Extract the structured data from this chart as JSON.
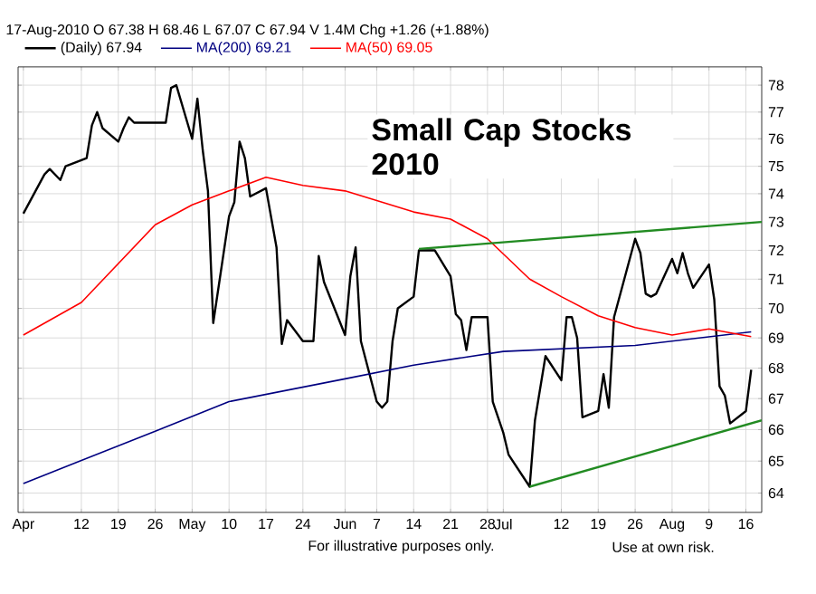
{
  "chart_data": {
    "type": "line",
    "title": "Small Cap Stocks 2010",
    "subtitle": "17-Aug-2010 O 67.38 H 68.46 L 67.07 C 67.94 V 1.4M Chg +1.26 (+1.88%)",
    "series": [
      {
        "name": "(Daily) 67.94",
        "color": "#000000",
        "x": [
          "2010-04-01",
          "2010-04-05",
          "2010-04-06",
          "2010-04-08",
          "2010-04-09",
          "2010-04-13",
          "2010-04-14",
          "2010-04-15",
          "2010-04-16",
          "2010-04-19",
          "2010-04-20",
          "2010-04-21",
          "2010-04-22",
          "2010-04-23",
          "2010-04-26",
          "2010-04-27",
          "2010-04-28",
          "2010-04-29",
          "2010-04-30",
          "2010-05-03",
          "2010-05-04",
          "2010-05-05",
          "2010-05-06",
          "2010-05-07",
          "2010-05-10",
          "2010-05-11",
          "2010-05-12",
          "2010-05-13",
          "2010-05-14",
          "2010-05-17",
          "2010-05-19",
          "2010-05-20",
          "2010-05-21",
          "2010-05-24",
          "2010-05-26",
          "2010-05-27",
          "2010-05-28",
          "2010-06-01",
          "2010-06-02",
          "2010-06-03",
          "2010-06-04",
          "2010-06-07",
          "2010-06-08",
          "2010-06-09",
          "2010-06-10",
          "2010-06-11",
          "2010-06-14",
          "2010-06-15",
          "2010-06-16",
          "2010-06-18",
          "2010-06-21",
          "2010-06-22",
          "2010-06-23",
          "2010-06-24",
          "2010-06-25",
          "2010-06-28",
          "2010-06-29",
          "2010-07-01",
          "2010-07-02",
          "2010-07-06",
          "2010-07-07",
          "2010-07-09",
          "2010-07-12",
          "2010-07-13",
          "2010-07-14",
          "2010-07-15",
          "2010-07-16",
          "2010-07-19",
          "2010-07-20",
          "2010-07-21",
          "2010-07-22",
          "2010-07-26",
          "2010-07-27",
          "2010-07-28",
          "2010-07-29",
          "2010-07-30",
          "2010-08-02",
          "2010-08-03",
          "2010-08-04",
          "2010-08-05",
          "2010-08-06",
          "2010-08-09",
          "2010-08-10",
          "2010-08-11",
          "2010-08-12",
          "2010-08-13",
          "2010-08-16",
          "2010-08-17"
        ],
        "values": [
          73.3,
          74.7,
          74.9,
          74.5,
          75.0,
          75.3,
          76.5,
          77.0,
          76.4,
          75.9,
          76.4,
          76.8,
          76.6,
          76.6,
          76.6,
          76.6,
          76.6,
          77.9,
          78.0,
          76.0,
          77.5,
          75.6,
          74.1,
          69.5,
          73.2,
          73.7,
          75.9,
          75.3,
          73.9,
          74.2,
          72.1,
          68.8,
          69.6,
          68.9,
          68.9,
          71.8,
          70.9,
          69.1,
          71.1,
          72.1,
          68.9,
          66.9,
          66.7,
          66.9,
          68.9,
          70.0,
          70.4,
          72.0,
          72.0,
          72.0,
          71.1,
          69.8,
          69.6,
          68.6,
          69.7,
          69.7,
          66.9,
          65.9,
          65.2,
          64.2,
          66.3,
          68.4,
          67.6,
          69.7,
          69.7,
          69.0,
          66.4,
          66.6,
          67.8,
          66.7,
          69.7,
          72.4,
          71.9,
          70.5,
          70.4,
          70.5,
          71.7,
          71.2,
          71.9,
          71.2,
          70.7,
          71.5,
          70.3,
          67.4,
          67.1,
          66.2,
          66.6,
          67.94
        ]
      },
      {
        "name": "MA(200) 69.21",
        "color": "#000080",
        "x": [
          "2010-04-01",
          "2010-04-26",
          "2010-05-10",
          "2010-06-01",
          "2010-06-14",
          "2010-07-01",
          "2010-07-26",
          "2010-08-17"
        ],
        "values": [
          64.3,
          65.95,
          66.9,
          67.65,
          68.1,
          68.55,
          68.75,
          69.21
        ]
      },
      {
        "name": "MA(50) 69.05",
        "color": "#ff0000",
        "x": [
          "2010-04-01",
          "2010-04-12",
          "2010-04-26",
          "2010-05-03",
          "2010-05-10",
          "2010-05-17",
          "2010-05-24",
          "2010-06-01",
          "2010-06-14",
          "2010-06-21",
          "2010-06-28",
          "2010-07-06",
          "2010-07-12",
          "2010-07-19",
          "2010-07-26",
          "2010-08-02",
          "2010-08-09",
          "2010-08-17"
        ],
        "values": [
          69.1,
          70.2,
          72.9,
          73.6,
          74.1,
          74.6,
          74.3,
          74.1,
          73.35,
          73.1,
          72.4,
          71.0,
          70.4,
          69.75,
          69.35,
          69.1,
          69.3,
          69.05
        ]
      },
      {
        "color": "#228b22",
        "x": [
          "2010-06-15",
          "2010-08-19"
        ],
        "values": [
          72.05,
          73.0
        ]
      },
      {
        "color": "#228b22",
        "x": [
          "2010-07-06",
          "2010-08-19"
        ],
        "values": [
          64.2,
          66.3
        ]
      }
    ],
    "xlim": [
      "2010-03-31",
      "2010-08-19"
    ],
    "xticks": [
      {
        "value": "2010-04-01",
        "label": "Apr"
      },
      {
        "value": "2010-04-12",
        "label": "12"
      },
      {
        "value": "2010-04-19",
        "label": "19"
      },
      {
        "value": "2010-04-26",
        "label": "26"
      },
      {
        "value": "2010-05-03",
        "label": "May"
      },
      {
        "value": "2010-05-10",
        "label": "10"
      },
      {
        "value": "2010-05-17",
        "label": "17"
      },
      {
        "value": "2010-05-24",
        "label": "24"
      },
      {
        "value": "2010-06-01",
        "label": "Jun"
      },
      {
        "value": "2010-06-07",
        "label": "7"
      },
      {
        "value": "2010-06-14",
        "label": "14"
      },
      {
        "value": "2010-06-21",
        "label": "21"
      },
      {
        "value": "2010-06-28",
        "label": "28"
      },
      {
        "value": "2010-07-01",
        "label": "Jul"
      },
      {
        "value": "2010-07-12",
        "label": "12"
      },
      {
        "value": "2010-07-19",
        "label": "19"
      },
      {
        "value": "2010-07-26",
        "label": "26"
      },
      {
        "value": "2010-08-02",
        "label": "Aug"
      },
      {
        "value": "2010-08-09",
        "label": "9"
      },
      {
        "value": "2010-08-16",
        "label": "16"
      }
    ],
    "ylim": [
      63.4,
      78.7
    ],
    "yticks": [
      64,
      65,
      66,
      67,
      68,
      69,
      70,
      71,
      72,
      73,
      74,
      75,
      76,
      77,
      78
    ],
    "log": true,
    "grid": true,
    "legend": "top",
    "annotations": [
      "For illustrative purposes only.",
      "Use at own risk."
    ]
  }
}
